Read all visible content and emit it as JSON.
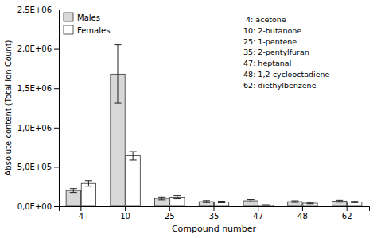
{
  "chart_data": {
    "type": "bar",
    "categories": [
      "4",
      "10",
      "25",
      "35",
      "47",
      "48",
      "62"
    ],
    "series": [
      {
        "name": "Males",
        "color": "#d8d8d8",
        "values": [
          200000,
          1680000,
          100000,
          60000,
          70000,
          60000,
          65000
        ],
        "errors": [
          25000,
          370000,
          18000,
          12000,
          15000,
          10000,
          12000
        ]
      },
      {
        "name": "Females",
        "color": "#ffffff",
        "values": [
          290000,
          640000,
          115000,
          55000,
          15000,
          40000,
          55000
        ],
        "errors": [
          35000,
          55000,
          20000,
          10000,
          5000,
          8000,
          8000
        ]
      }
    ],
    "xlabel": "Compound number",
    "ylabel": "Absolute content (Total Ion Count)",
    "ylim": [
      0,
      2500000
    ],
    "yticks": [
      {
        "value": 0,
        "label": "0,0E+00"
      },
      {
        "value": 500000,
        "label": "5,0E+05"
      },
      {
        "value": 1000000,
        "label": "1,0E+06"
      },
      {
        "value": 1500000,
        "label": "1,5E+06"
      },
      {
        "value": 2000000,
        "label": "2,0E+06"
      },
      {
        "value": 2500000,
        "label": "2,5E+06"
      }
    ],
    "legend": "upper left",
    "annotations": [
      " 4: acetone",
      "10: 2-butanone",
      "25: 1-pentene",
      "35: 2-pentylfuran",
      "47: heptanal",
      "48: 1,2-cyclooctadiene",
      "62: diethylbenzene"
    ]
  }
}
